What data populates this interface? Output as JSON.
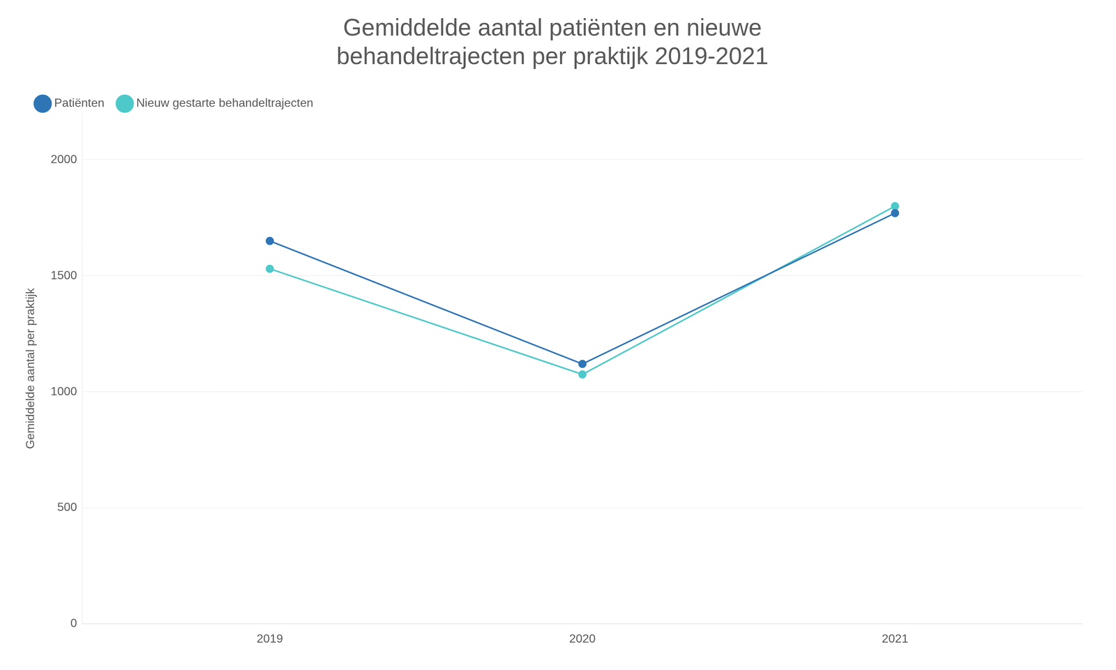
{
  "chart_data": {
    "type": "line",
    "title": "Gemiddelde aantal patiënten en nieuwe\nbehandeltrajecten per praktijk 2019-2021",
    "x": [
      2019,
      2020,
      2021
    ],
    "series": [
      {
        "name": "Patiënten",
        "color": "#2E75B6",
        "marker": "circle",
        "values": [
          1650,
          1120,
          1770
        ]
      },
      {
        "name": "Nieuw gestarte behandeltrajecten",
        "color": "#4EC9C9",
        "marker": "circle",
        "values": [
          1530,
          1075,
          1800
        ]
      }
    ],
    "ylabel": "Gemiddelde aantal per praktijk",
    "xlim": [
      2018.4,
      2021.6
    ],
    "xticks": [
      2019,
      2020,
      2021
    ],
    "ylim": [
      0,
      2200
    ],
    "yticks": [
      0,
      500,
      1000,
      1500,
      2000
    ],
    "grid": true,
    "legend": "upper left"
  }
}
